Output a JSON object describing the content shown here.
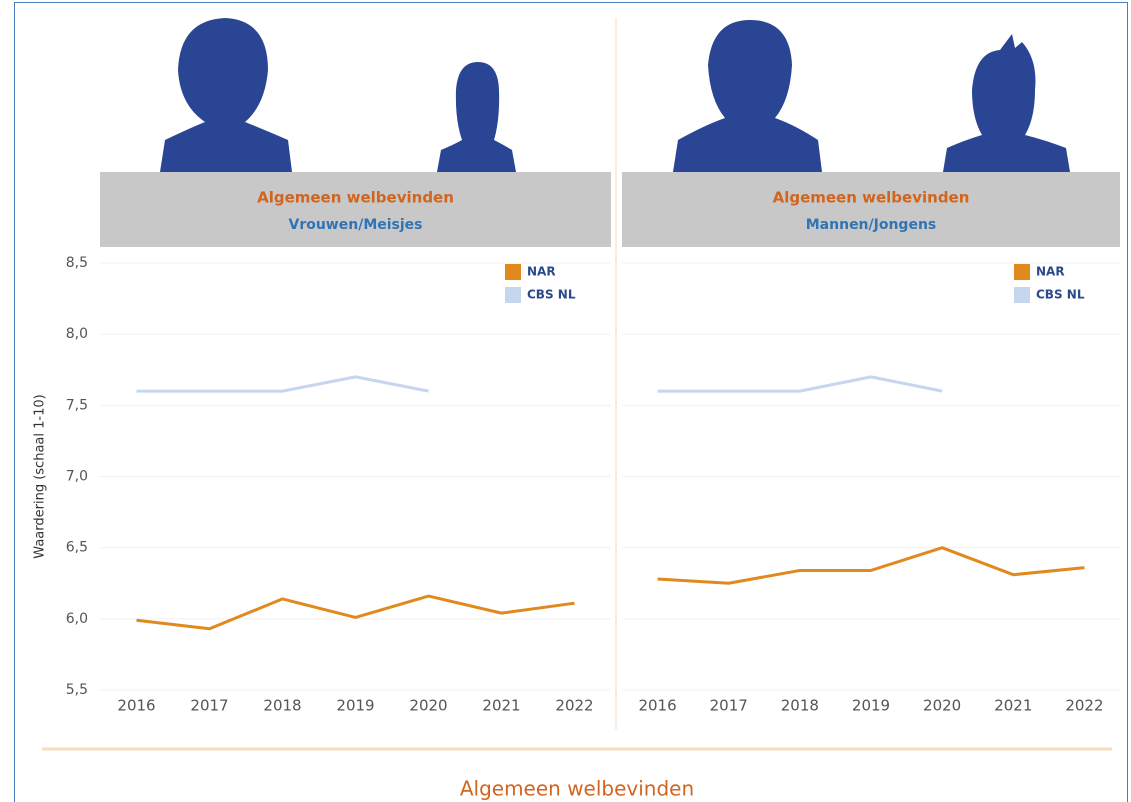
{
  "dashboard_title": "Algemeen welbevinden",
  "chart_data": [
    {
      "type": "line",
      "title": "Algemeen welbevinden",
      "subtitle": "Vrouwen/Meisjes",
      "y_label": "Waardering (schaal 1-10)",
      "categories": [
        "2016",
        "2017",
        "2018",
        "2019",
        "2020",
        "2021",
        "2022"
      ],
      "series": [
        {
          "name": "NAR",
          "color": "#e08a1e",
          "values": [
            5.99,
            5.93,
            6.14,
            6.01,
            6.16,
            6.04,
            6.11
          ]
        },
        {
          "name": "CBS NL",
          "color": "#c5d6ee",
          "values": [
            7.6,
            7.6,
            7.6,
            7.7,
            7.6,
            null,
            null
          ]
        }
      ],
      "ylim": [
        5.5,
        8.5
      ],
      "yticks": [
        {
          "value": 5.5,
          "label": "5,5"
        },
        {
          "value": 6.0,
          "label": "6,0"
        },
        {
          "value": 6.5,
          "label": "6,5"
        },
        {
          "value": 7.0,
          "label": "7,0"
        },
        {
          "value": 7.5,
          "label": "7,5"
        },
        {
          "value": 8.0,
          "label": "8,0"
        },
        {
          "value": 8.5,
          "label": "8,5"
        }
      ],
      "grid": true,
      "legend": "top-right"
    },
    {
      "type": "line",
      "title": "Algemeen welbevinden",
      "subtitle": "Mannen/Jongens",
      "categories": [
        "2016",
        "2017",
        "2018",
        "2019",
        "2020",
        "2021",
        "2022"
      ],
      "series": [
        {
          "name": "NAR",
          "color": "#e08a1e",
          "values": [
            6.28,
            6.25,
            6.34,
            6.34,
            6.5,
            6.31,
            6.36
          ]
        },
        {
          "name": "CBS NL",
          "color": "#c5d6ee",
          "values": [
            7.6,
            7.6,
            7.6,
            7.7,
            7.6,
            null,
            null
          ]
        }
      ],
      "ylim": [
        5.5,
        8.5
      ],
      "yticks": [
        5.5,
        6.0,
        6.5,
        7.0,
        7.5,
        8.0,
        8.5
      ],
      "grid": true,
      "legend": "top-right"
    }
  ]
}
